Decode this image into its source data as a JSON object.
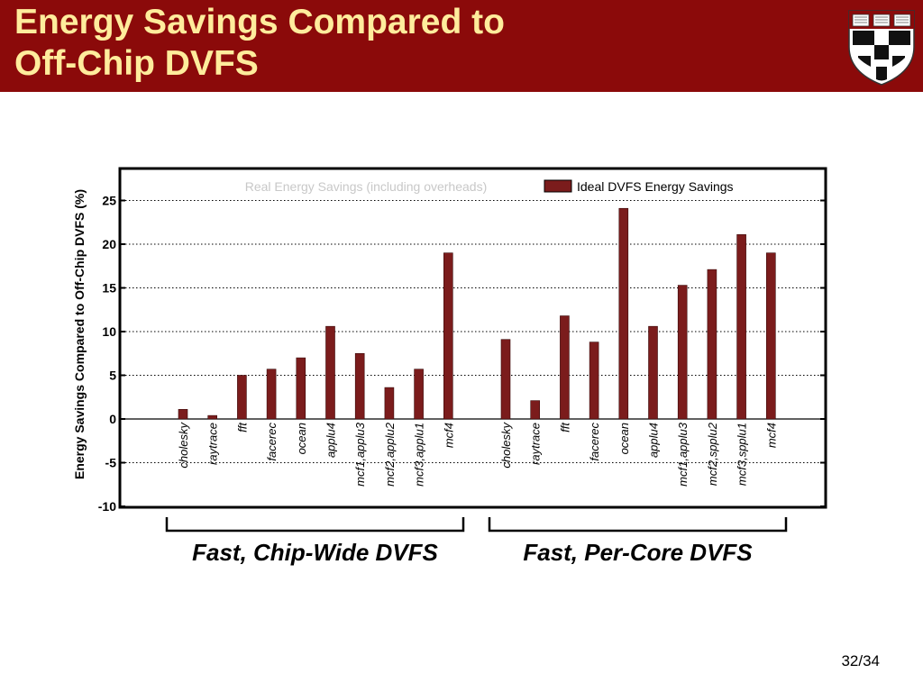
{
  "slide": {
    "title_line1": "Energy Savings Compared to",
    "title_line2": "Off-Chip DVFS",
    "page_number": "32/34"
  },
  "colors": {
    "header_bg": "#8b0a0a",
    "title_text": "#ffec9c",
    "bar_fill": "#7b1c1c"
  },
  "chart_data": {
    "type": "bar",
    "ylabel": "Energy Savings Compared to Off-Chip DVFS (%)",
    "ylim": [
      -10,
      27
    ],
    "yticks": [
      25,
      20,
      15,
      10,
      5,
      0,
      -5,
      -10
    ],
    "grid": "horizontal dotted",
    "legend": {
      "position": "top",
      "entries": [
        "Real Energy Savings (including overheads)",
        "Ideal DVFS Energy Savings"
      ]
    },
    "groups": [
      {
        "name": "Fast, Chip-Wide DVFS",
        "categories": [
          "cholesky",
          "raytrace",
          "fft",
          "facerec",
          "ocean",
          "applu4",
          "mcf1,applu3",
          "mcf2,applu2",
          "mcf3,applu1",
          "mcf4"
        ],
        "values": [
          1.1,
          0.4,
          5.0,
          5.7,
          7.0,
          10.6,
          7.5,
          3.6,
          5.7,
          19.0
        ]
      },
      {
        "name": "Fast, Per-Core DVFS",
        "categories": [
          "cholesky",
          "raytrace",
          "fft",
          "facerec",
          "ocean",
          "applu4",
          "mcf1,applu3",
          "mcf2,spplu2",
          "mcf3,spplu1",
          "mcf4"
        ],
        "values": [
          9.1,
          2.1,
          11.8,
          8.8,
          24.1,
          10.6,
          15.3,
          17.1,
          21.1,
          19.0
        ]
      }
    ]
  }
}
